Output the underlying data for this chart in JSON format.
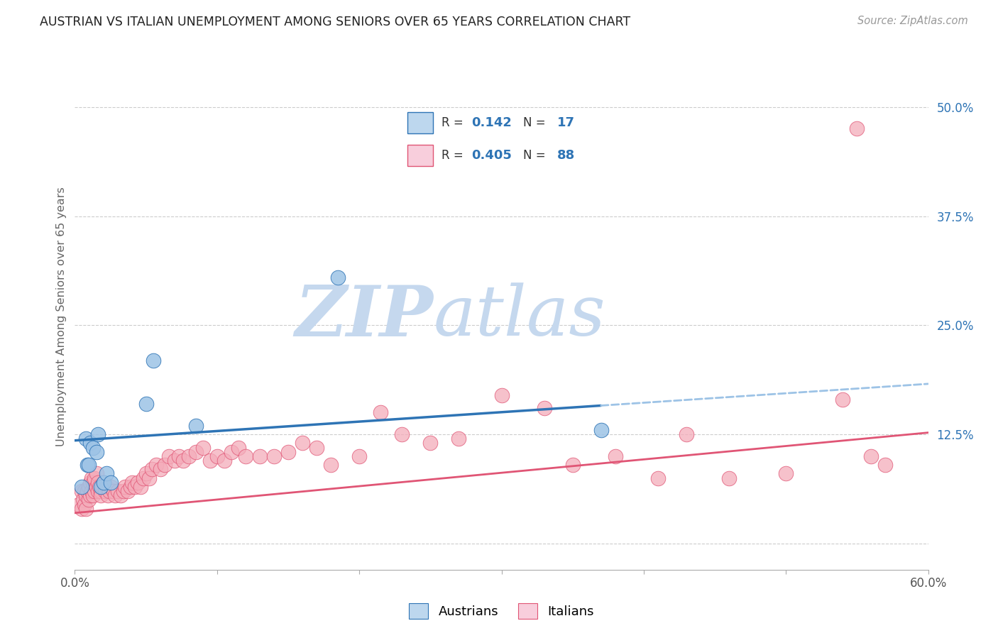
{
  "title": "AUSTRIAN VS ITALIAN UNEMPLOYMENT AMONG SENIORS OVER 65 YEARS CORRELATION CHART",
  "source": "Source: ZipAtlas.com",
  "ylabel": "Unemployment Among Seniors over 65 years",
  "xlim": [
    0.0,
    0.6
  ],
  "ylim": [
    -0.03,
    0.55
  ],
  "grid_color": "#cccccc",
  "background_color": "#ffffff",
  "austrians_color": "#9DC3E6",
  "italians_color": "#F4ACBA",
  "austrians_line_color": "#2E74B5",
  "italians_line_color": "#E05575",
  "dashed_line_color": "#9DC3E6",
  "R_austrians": "0.142",
  "N_austrians": "17",
  "R_italians": "0.405",
  "N_italians": "88",
  "aus_line_x0": 0.0,
  "aus_line_y0": 0.118,
  "aus_line_x1": 0.37,
  "aus_line_y1": 0.158,
  "ita_line_x0": 0.0,
  "ita_line_y0": 0.035,
  "ita_line_x1": 0.6,
  "ita_line_y1": 0.127,
  "austrians_x": [
    0.005,
    0.008,
    0.009,
    0.01,
    0.011,
    0.013,
    0.015,
    0.016,
    0.018,
    0.02,
    0.022,
    0.025,
    0.05,
    0.055,
    0.085,
    0.185,
    0.37
  ],
  "austrians_y": [
    0.065,
    0.12,
    0.09,
    0.09,
    0.115,
    0.11,
    0.105,
    0.125,
    0.065,
    0.07,
    0.08,
    0.07,
    0.16,
    0.21,
    0.135,
    0.305,
    0.13
  ],
  "italians_x": [
    0.003,
    0.005,
    0.005,
    0.006,
    0.007,
    0.007,
    0.008,
    0.008,
    0.009,
    0.01,
    0.01,
    0.011,
    0.011,
    0.012,
    0.012,
    0.013,
    0.013,
    0.014,
    0.014,
    0.015,
    0.015,
    0.016,
    0.016,
    0.017,
    0.018,
    0.018,
    0.019,
    0.02,
    0.021,
    0.022,
    0.023,
    0.024,
    0.025,
    0.027,
    0.028,
    0.03,
    0.032,
    0.034,
    0.035,
    0.037,
    0.039,
    0.04,
    0.042,
    0.044,
    0.046,
    0.048,
    0.05,
    0.052,
    0.054,
    0.057,
    0.06,
    0.063,
    0.066,
    0.07,
    0.073,
    0.076,
    0.08,
    0.085,
    0.09,
    0.095,
    0.1,
    0.105,
    0.11,
    0.115,
    0.12,
    0.13,
    0.14,
    0.15,
    0.16,
    0.17,
    0.18,
    0.2,
    0.215,
    0.23,
    0.25,
    0.27,
    0.3,
    0.33,
    0.35,
    0.38,
    0.41,
    0.43,
    0.46,
    0.5,
    0.54,
    0.56,
    0.57,
    0.55
  ],
  "italians_y": [
    0.045,
    0.06,
    0.04,
    0.05,
    0.06,
    0.045,
    0.055,
    0.04,
    0.06,
    0.065,
    0.05,
    0.07,
    0.055,
    0.075,
    0.06,
    0.07,
    0.055,
    0.075,
    0.06,
    0.08,
    0.065,
    0.07,
    0.06,
    0.065,
    0.06,
    0.055,
    0.065,
    0.07,
    0.06,
    0.065,
    0.055,
    0.06,
    0.065,
    0.06,
    0.055,
    0.06,
    0.055,
    0.06,
    0.065,
    0.06,
    0.065,
    0.07,
    0.065,
    0.07,
    0.065,
    0.075,
    0.08,
    0.075,
    0.085,
    0.09,
    0.085,
    0.09,
    0.1,
    0.095,
    0.1,
    0.095,
    0.1,
    0.105,
    0.11,
    0.095,
    0.1,
    0.095,
    0.105,
    0.11,
    0.1,
    0.1,
    0.1,
    0.105,
    0.115,
    0.11,
    0.09,
    0.1,
    0.15,
    0.125,
    0.115,
    0.12,
    0.17,
    0.155,
    0.09,
    0.1,
    0.075,
    0.125,
    0.075,
    0.08,
    0.165,
    0.1,
    0.09,
    0.475
  ],
  "watermark_zip": "ZIP",
  "watermark_atlas": "atlas",
  "watermark_color_zip": "#C5D8EE",
  "watermark_color_atlas": "#C5D8EE",
  "legend_box_color_austrians": "#BDD7EE",
  "legend_box_color_italians": "#F8CEDC"
}
